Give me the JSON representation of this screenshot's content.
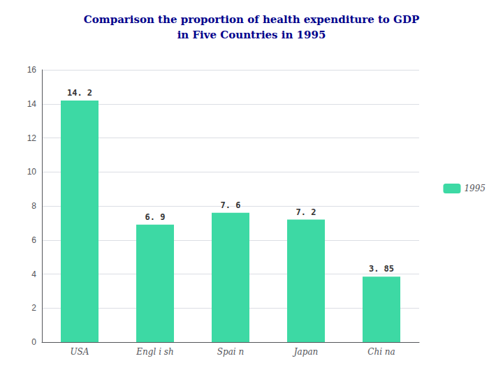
{
  "chart_data": {
    "type": "bar",
    "title": "Comparison the proportion of health expenditure to GDP\nin Five Countries in 1995",
    "categories": [
      "USA",
      "Engl i sh",
      "Spai n",
      "Japan",
      "Chi na"
    ],
    "series": [
      {
        "name": "1995",
        "color": "#3DD9A4",
        "values": [
          14.2,
          6.9,
          7.6,
          7.2,
          3.85
        ],
        "value_labels": [
          "14. 2",
          "6. 9",
          "7. 6",
          "7. 2",
          "3. 85"
        ]
      }
    ],
    "ylim": [
      0,
      16
    ],
    "yticks": [
      0,
      2,
      4,
      6,
      8,
      10,
      12,
      14,
      16
    ],
    "grid": true,
    "legend": "right",
    "data_labels": true
  }
}
